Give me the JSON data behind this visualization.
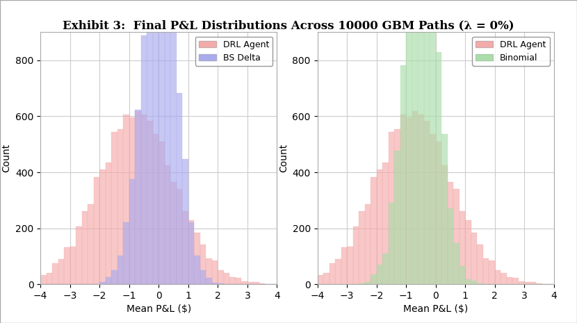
{
  "title": "Exhibit 3:  Final P&L Distributions Across 10000 GBM Paths (λ = 0%)",
  "title_fontsize": 12,
  "xlabel": "Mean P&L ($)",
  "ylabel": "Count",
  "xlim": [
    -4,
    4
  ],
  "ylim": [
    0,
    900
  ],
  "yticks": [
    0,
    200,
    400,
    600,
    800
  ],
  "xticks": [
    -4,
    -3,
    -2,
    -1,
    0,
    1,
    2,
    3,
    4
  ],
  "n_paths": 10000,
  "bins": 40,
  "drl_color": "#F5AAAA",
  "bs_color": "#AAAAEE",
  "binomial_color": "#AADDAA",
  "alpha": 0.65,
  "drl_mean": -0.75,
  "drl_std": 1.3,
  "bs_mean": 0.02,
  "bs_std": 0.58,
  "binomial_mean": -0.5,
  "binomial_std": 0.55,
  "seed_drl": 42,
  "seed_bs": 7,
  "seed_binom": 99,
  "background_color": "#ffffff",
  "grid_color": "#cccccc",
  "border_color": "#aaaaaa"
}
